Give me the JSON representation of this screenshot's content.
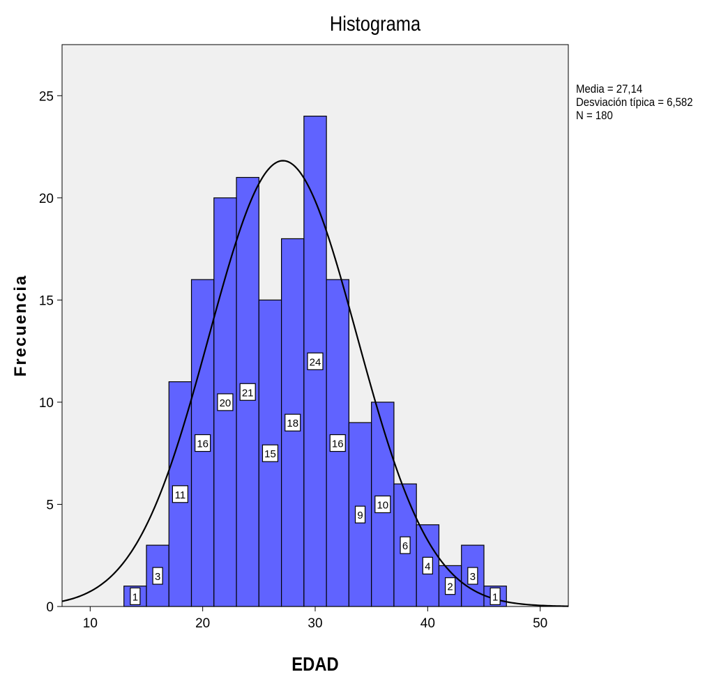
{
  "chart_data": {
    "type": "bar",
    "title": "Histograma",
    "xlabel": "EDAD",
    "ylabel": "Frecuencia",
    "xlim": [
      7.5,
      52.5
    ],
    "ylim": [
      0,
      27.5
    ],
    "xticks": [
      10,
      20,
      30,
      40,
      50
    ],
    "yticks": [
      0,
      5,
      10,
      15,
      20,
      25
    ],
    "bin_width": 2,
    "bins": [
      {
        "x0": 13,
        "x1": 15,
        "value": 1
      },
      {
        "x0": 15,
        "x1": 17,
        "value": 3
      },
      {
        "x0": 17,
        "x1": 19,
        "value": 11
      },
      {
        "x0": 19,
        "x1": 21,
        "value": 16
      },
      {
        "x0": 21,
        "x1": 23,
        "value": 20
      },
      {
        "x0": 23,
        "x1": 25,
        "value": 21
      },
      {
        "x0": 25,
        "x1": 27,
        "value": 15
      },
      {
        "x0": 27,
        "x1": 29,
        "value": 18
      },
      {
        "x0": 29,
        "x1": 31,
        "value": 24
      },
      {
        "x0": 31,
        "x1": 33,
        "value": 16
      },
      {
        "x0": 33,
        "x1": 35,
        "value": 9
      },
      {
        "x0": 35,
        "x1": 37,
        "value": 10
      },
      {
        "x0": 37,
        "x1": 39,
        "value": 6
      },
      {
        "x0": 39,
        "x1": 41,
        "value": 4
      },
      {
        "x0": 41,
        "x1": 43,
        "value": 2
      },
      {
        "x0": 43,
        "x1": 45,
        "value": 3
      },
      {
        "x0": 45,
        "x1": 47,
        "value": 1
      }
    ],
    "normal_curve": {
      "mean": 27.14,
      "sd": 6.582,
      "n": 180
    },
    "grid": false,
    "colors": {
      "bar": "#6063ff",
      "curve": "#000000",
      "plot_bg": "#f0f0f0"
    }
  },
  "stats": {
    "line1": "Media = 27,14",
    "line2": "Desviación típica = 6,582",
    "line3": "N = 180"
  }
}
